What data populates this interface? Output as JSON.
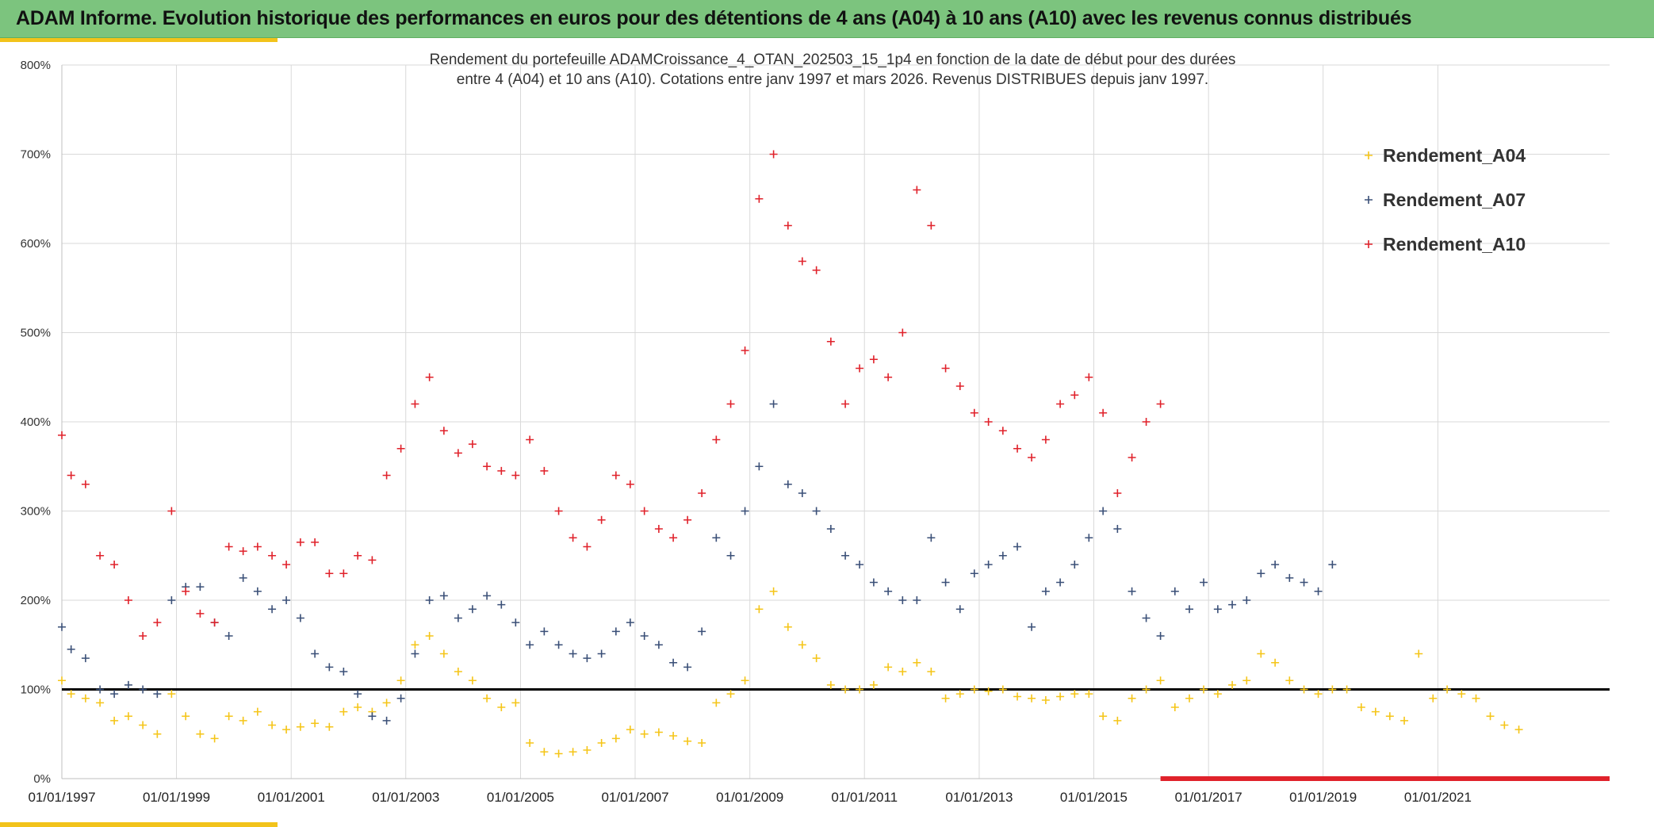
{
  "header": {
    "title": "ADAM Informe. Evolution historique des performances en euros pour des détentions de 4 ans (A04) à 10 ans (A10) avec les revenus connus distribués"
  },
  "colors": {
    "header_bg": "#7cc47e",
    "accent": "#f2c31b",
    "A04": "#f5c518",
    "A07": "#3b5078",
    "A10": "#e0222b",
    "reference_line": "#000000",
    "grid": "#d9d9d9"
  },
  "chart_data": {
    "type": "scatter",
    "title_lines": [
      "Rendement du portefeuille ADAMCroissance_4_OTAN_202503_15_1p4  en fonction de la date de début pour des durées",
      "entre 4 (A04) et 10 ans (A10). Cotations entre janv 1997 et mars 2026. Revenus DISTRIBUES depuis janv 1997."
    ],
    "x_axis": {
      "type": "date",
      "min": "1997-01-01",
      "max": "2023-12-31",
      "tick_labels": [
        "01/01/1997",
        "01/01/1999",
        "01/01/2001",
        "01/01/2003",
        "01/01/2005",
        "01/01/2007",
        "01/01/2009",
        "01/01/2011",
        "01/01/2013",
        "01/01/2015",
        "01/01/2017",
        "01/01/2019",
        "01/01/2021"
      ]
    },
    "y_axis": {
      "min": 0,
      "max": 800,
      "tick_values": [
        0,
        100,
        200,
        300,
        400,
        500,
        600,
        700,
        800
      ],
      "tick_labels": [
        "0%",
        "100%",
        "200%",
        "300%",
        "400%",
        "500%",
        "600%",
        "700%",
        "800%"
      ]
    },
    "grid": true,
    "legend_position": "top-right",
    "marker": "+",
    "reference_line_y": 100,
    "series": [
      {
        "name": "Rendement_A04",
        "color": "#f5c518",
        "x": [
          "1997-01-01",
          "1997-03-01",
          "1997-06-01",
          "1997-09-01",
          "1997-12-01",
          "1998-03-01",
          "1998-06-01",
          "1998-09-01",
          "1998-12-01",
          "1999-03-01",
          "1999-06-01",
          "1999-09-01",
          "1999-12-01",
          "2000-03-01",
          "2000-06-01",
          "2000-09-01",
          "2000-12-01",
          "2001-03-01",
          "2001-06-01",
          "2001-09-01",
          "2001-12-01",
          "2002-03-01",
          "2002-06-01",
          "2002-09-01",
          "2002-12-01",
          "2003-03-01",
          "2003-06-01",
          "2003-09-01",
          "2003-12-01",
          "2004-03-01",
          "2004-06-01",
          "2004-09-01",
          "2004-12-01",
          "2005-03-01",
          "2005-06-01",
          "2005-09-01",
          "2005-12-01",
          "2006-03-01",
          "2006-06-01",
          "2006-09-01",
          "2006-12-01",
          "2007-03-01",
          "2007-06-01",
          "2007-09-01",
          "2007-12-01",
          "2008-03-01",
          "2008-06-01",
          "2008-09-01",
          "2008-12-01",
          "2009-03-01",
          "2009-06-01",
          "2009-09-01",
          "2009-12-01",
          "2010-03-01",
          "2010-06-01",
          "2010-09-01",
          "2010-12-01",
          "2011-03-01",
          "2011-06-01",
          "2011-09-01",
          "2011-12-01",
          "2012-03-01",
          "2012-06-01",
          "2012-09-01",
          "2012-12-01",
          "2013-03-01",
          "2013-06-01",
          "2013-09-01",
          "2013-12-01",
          "2014-03-01",
          "2014-06-01",
          "2014-09-01",
          "2014-12-01",
          "2015-03-01",
          "2015-06-01",
          "2015-09-01",
          "2015-12-01",
          "2016-03-01",
          "2016-06-01",
          "2016-09-01",
          "2016-12-01",
          "2017-03-01",
          "2017-06-01",
          "2017-09-01",
          "2017-12-01",
          "2018-03-01",
          "2018-06-01",
          "2018-09-01",
          "2018-12-01",
          "2019-03-01",
          "2019-06-01",
          "2019-09-01",
          "2019-12-01",
          "2020-03-01",
          "2020-06-01",
          "2020-09-01",
          "2020-12-01",
          "2021-03-01",
          "2021-06-01",
          "2021-09-01",
          "2021-12-01",
          "2022-03-01",
          "2022-06-01"
        ],
        "y": [
          110,
          95,
          90,
          85,
          65,
          70,
          60,
          50,
          95,
          70,
          50,
          45,
          70,
          65,
          75,
          60,
          55,
          58,
          62,
          58,
          75,
          80,
          75,
          85,
          110,
          150,
          160,
          140,
          120,
          110,
          90,
          80,
          85,
          40,
          30,
          28,
          30,
          32,
          40,
          45,
          55,
          50,
          52,
          48,
          42,
          40,
          85,
          95,
          110,
          190,
          210,
          170,
          150,
          135,
          105,
          100,
          100,
          105,
          125,
          120,
          130,
          120,
          90,
          95,
          100,
          98,
          100,
          92,
          90,
          88,
          92,
          95,
          95,
          70,
          65,
          90,
          100,
          110,
          80,
          90,
          100,
          95,
          105,
          110,
          140,
          130,
          110,
          100,
          95,
          100,
          100,
          80,
          75,
          70,
          65,
          140,
          90,
          100,
          95,
          90,
          70,
          60,
          55
        ]
      },
      {
        "name": "Rendement_A07",
        "color": "#3b5078",
        "x": [
          "1997-01-01",
          "1997-03-01",
          "1997-06-01",
          "1997-09-01",
          "1997-12-01",
          "1998-03-01",
          "1998-06-01",
          "1998-09-01",
          "1998-12-01",
          "1999-03-01",
          "1999-06-01",
          "1999-09-01",
          "1999-12-01",
          "2000-03-01",
          "2000-06-01",
          "2000-09-01",
          "2000-12-01",
          "2001-03-01",
          "2001-06-01",
          "2001-09-01",
          "2001-12-01",
          "2002-03-01",
          "2002-06-01",
          "2002-09-01",
          "2002-12-01",
          "2003-03-01",
          "2003-06-01",
          "2003-09-01",
          "2003-12-01",
          "2004-03-01",
          "2004-06-01",
          "2004-09-01",
          "2004-12-01",
          "2005-03-01",
          "2005-06-01",
          "2005-09-01",
          "2005-12-01",
          "2006-03-01",
          "2006-06-01",
          "2006-09-01",
          "2006-12-01",
          "2007-03-01",
          "2007-06-01",
          "2007-09-01",
          "2007-12-01",
          "2008-03-01",
          "2008-06-01",
          "2008-09-01",
          "2008-12-01",
          "2009-03-01",
          "2009-06-01",
          "2009-09-01",
          "2009-12-01",
          "2010-03-01",
          "2010-06-01",
          "2010-09-01",
          "2010-12-01",
          "2011-03-01",
          "2011-06-01",
          "2011-09-01",
          "2011-12-01",
          "2012-03-01",
          "2012-06-01",
          "2012-09-01",
          "2012-12-01",
          "2013-03-01",
          "2013-06-01",
          "2013-09-01",
          "2013-12-01",
          "2014-03-01",
          "2014-06-01",
          "2014-09-01",
          "2014-12-01",
          "2015-03-01",
          "2015-06-01",
          "2015-09-01",
          "2015-12-01",
          "2016-03-01",
          "2016-06-01",
          "2016-09-01",
          "2016-12-01",
          "2017-03-01",
          "2017-06-01",
          "2017-09-01",
          "2017-12-01",
          "2018-03-01",
          "2018-06-01",
          "2018-09-01",
          "2018-12-01",
          "2019-03-01"
        ],
        "y": [
          170,
          145,
          135,
          100,
          95,
          105,
          100,
          95,
          200,
          215,
          215,
          175,
          160,
          225,
          210,
          190,
          200,
          180,
          140,
          125,
          120,
          95,
          70,
          65,
          90,
          140,
          200,
          205,
          180,
          190,
          205,
          195,
          175,
          150,
          165,
          150,
          140,
          135,
          140,
          165,
          175,
          160,
          150,
          130,
          125,
          165,
          270,
          250,
          300,
          350,
          420,
          330,
          320,
          300,
          280,
          250,
          240,
          220,
          210,
          200,
          200,
          270,
          220,
          190,
          230,
          240,
          250,
          260,
          170,
          210,
          220,
          240,
          270,
          300,
          280,
          210,
          180,
          160,
          210,
          190,
          220,
          190,
          195,
          200,
          230,
          240,
          225,
          220,
          210,
          240
        ]
      },
      {
        "name": "Rendement_A10",
        "color": "#e0222b",
        "x": [
          "1997-01-01",
          "1997-03-01",
          "1997-06-01",
          "1997-09-01",
          "1997-12-01",
          "1998-03-01",
          "1998-06-01",
          "1998-09-01",
          "1998-12-01",
          "1999-03-01",
          "1999-06-01",
          "1999-09-01",
          "1999-12-01",
          "2000-03-01",
          "2000-06-01",
          "2000-09-01",
          "2000-12-01",
          "2001-03-01",
          "2001-06-01",
          "2001-09-01",
          "2001-12-01",
          "2002-03-01",
          "2002-06-01",
          "2002-09-01",
          "2002-12-01",
          "2003-03-01",
          "2003-06-01",
          "2003-09-01",
          "2003-12-01",
          "2004-03-01",
          "2004-06-01",
          "2004-09-01",
          "2004-12-01",
          "2005-03-01",
          "2005-06-01",
          "2005-09-01",
          "2005-12-01",
          "2006-03-01",
          "2006-06-01",
          "2006-09-01",
          "2006-12-01",
          "2007-03-01",
          "2007-06-01",
          "2007-09-01",
          "2007-12-01",
          "2008-03-01",
          "2008-06-01",
          "2008-09-01",
          "2008-12-01",
          "2009-03-01",
          "2009-06-01",
          "2009-09-01",
          "2009-12-01",
          "2010-03-01",
          "2010-06-01",
          "2010-09-01",
          "2010-12-01",
          "2011-03-01",
          "2011-06-01",
          "2011-09-01",
          "2011-12-01",
          "2012-03-01",
          "2012-06-01",
          "2012-09-01",
          "2012-12-01",
          "2013-03-01",
          "2013-06-01",
          "2013-09-01",
          "2013-12-01",
          "2014-03-01",
          "2014-06-01",
          "2014-09-01",
          "2014-12-01",
          "2015-03-01",
          "2015-06-01",
          "2015-09-01",
          "2015-12-01",
          "2016-03-01"
        ],
        "y": [
          385,
          340,
          330,
          250,
          240,
          200,
          160,
          175,
          300,
          210,
          185,
          175,
          260,
          255,
          260,
          250,
          240,
          265,
          265,
          230,
          230,
          250,
          245,
          340,
          370,
          420,
          450,
          390,
          365,
          375,
          350,
          345,
          340,
          380,
          345,
          300,
          270,
          260,
          290,
          340,
          330,
          300,
          280,
          270,
          290,
          320,
          380,
          420,
          480,
          650,
          700,
          620,
          580,
          570,
          490,
          420,
          460,
          470,
          450,
          500,
          660,
          620,
          460,
          440,
          410,
          400,
          390,
          370,
          360,
          380,
          420,
          430,
          450,
          410,
          320,
          360,
          400,
          420
        ]
      }
    ],
    "rug_band": {
      "x_from": "2016-03-01",
      "x_to": "2023-12-31",
      "y": 0,
      "color": "#e0222b"
    }
  }
}
